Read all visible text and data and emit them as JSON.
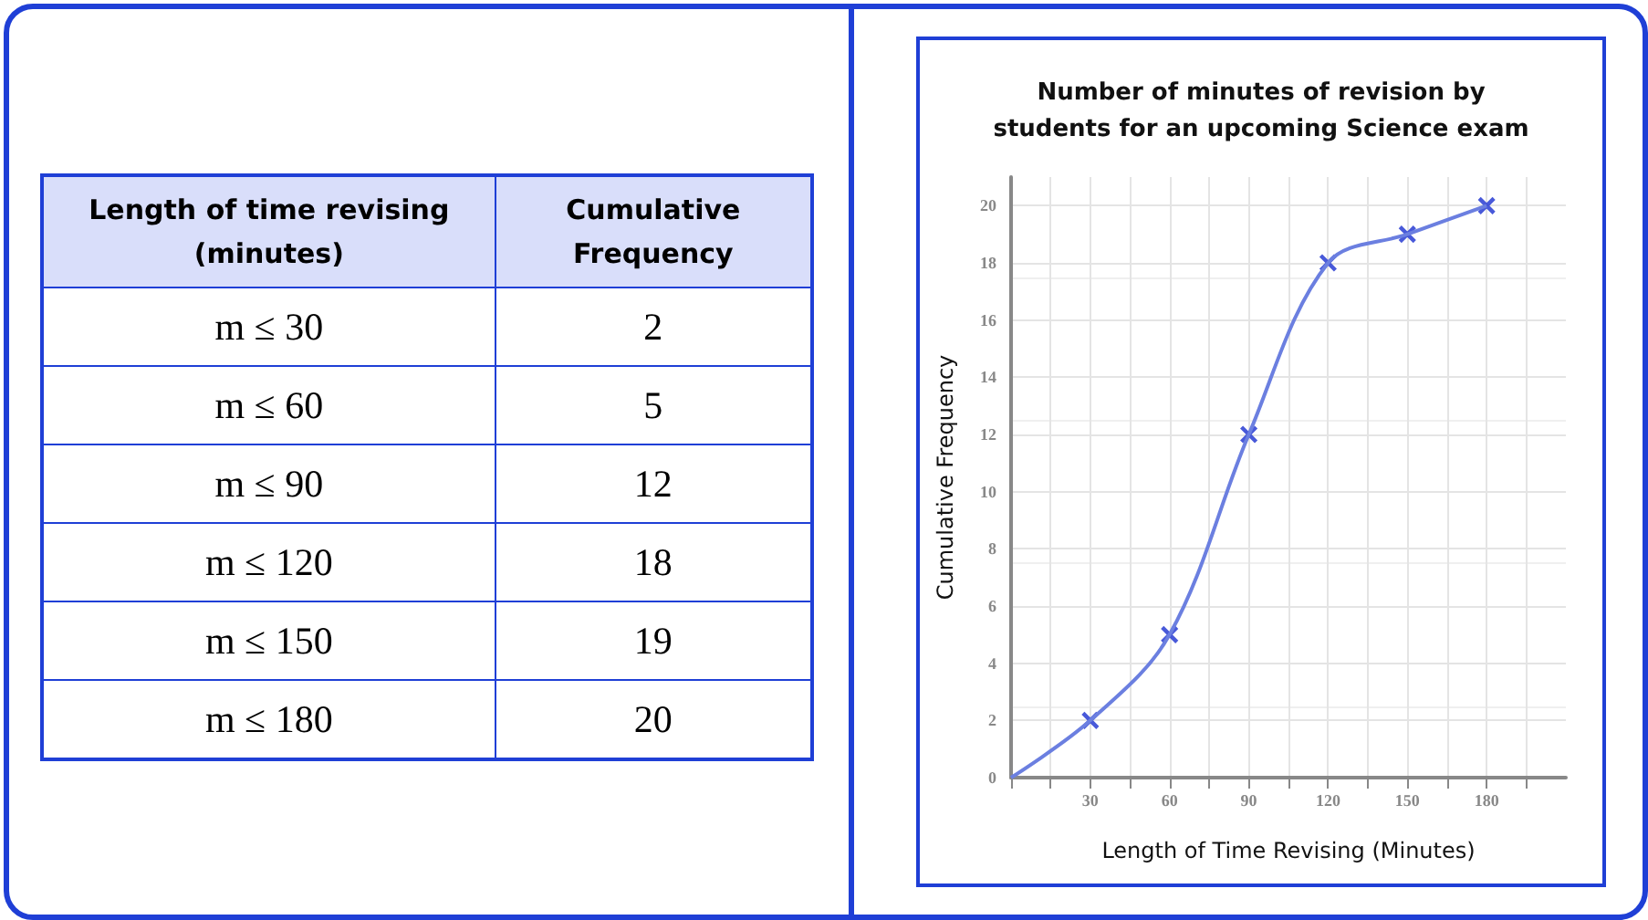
{
  "chart_data": {
    "type": "line",
    "title": "Number of minutes of revision by\nstudents for an upcoming Science exam",
    "xlabel": "Length of Time Revising (Minutes)",
    "ylabel": "Cumulative Frequency",
    "annotations": [
      "Length of time revising (minutes)",
      "Cumulative Frequency",
      "m ≤ 30",
      "2",
      "m ≤ 60",
      "5",
      "m ≤ 90",
      "12",
      "m ≤ 120",
      "18",
      "m ≤ 150",
      "19",
      "m ≤ 180",
      "20"
    ],
    "series": [
      {
        "type": "line",
        "color": "#6b7fe0",
        "marker": "none",
        "x": [
          0,
          30,
          60,
          90,
          120,
          150,
          180
        ],
        "values": [
          0,
          2,
          5,
          12,
          18,
          19,
          20
        ]
      },
      {
        "type": "scatter",
        "color": "#1a2fd0",
        "marker": "cross",
        "x": [
          30,
          60,
          90,
          120,
          150,
          180
        ],
        "values": [
          2,
          5,
          12,
          18,
          19,
          20
        ]
      }
    ],
    "xlim": [
      0,
      210
    ],
    "xticks": [
      {
        "value": 0,
        "label": null
      },
      {
        "value": 15,
        "label": null
      },
      30,
      {
        "value": 45,
        "label": null
      },
      60,
      {
        "value": 75,
        "label": null
      },
      90,
      {
        "value": 105,
        "label": null
      },
      120,
      {
        "value": 135,
        "label": null
      },
      150,
      {
        "value": 165,
        "label": null
      },
      180,
      {
        "value": 195,
        "label": null
      }
    ],
    "ylim": [
      0,
      21
    ],
    "yticks": [
      0,
      2,
      4,
      6,
      8,
      10,
      12,
      14,
      16,
      18,
      20
    ],
    "grid": true
  }
}
